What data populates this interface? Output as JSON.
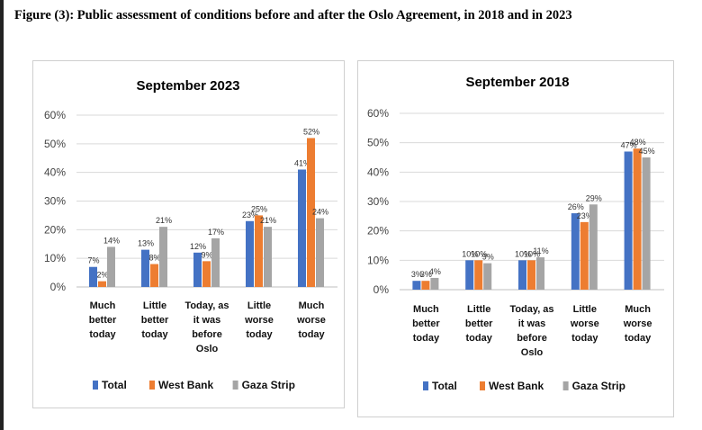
{
  "figure_title": "Figure (3): Public assessment of conditions before and after the Oslo Agreement, in 2018 and in 2023",
  "chart_data": [
    {
      "type": "bar",
      "title": "September 2023",
      "categories": [
        [
          "Much",
          "better",
          "today"
        ],
        [
          "Little",
          "better",
          "today"
        ],
        [
          "Today, as",
          "it was",
          "before",
          "Oslo"
        ],
        [
          "Little",
          "worse",
          "today"
        ],
        [
          "Much",
          "worse",
          "today"
        ]
      ],
      "series": [
        {
          "name": "Total",
          "color": "#4472C4",
          "values": [
            7,
            13,
            12,
            23,
            41
          ],
          "labels": [
            "7%",
            "13%",
            "12%",
            "23%",
            "41%"
          ]
        },
        {
          "name": "West Bank",
          "color": "#ED7D31",
          "values": [
            2,
            8,
            9,
            25,
            52
          ],
          "labels": [
            "2%",
            "8%",
            "9%",
            "25%",
            "52%"
          ]
        },
        {
          "name": "Gaza Strip",
          "color": "#A5A5A5",
          "values": [
            14,
            21,
            17,
            21,
            24
          ],
          "labels": [
            "14%",
            "21%",
            "17%",
            "21%",
            "24%"
          ]
        }
      ],
      "yticks": [
        "0%",
        "10%",
        "20%",
        "30%",
        "40%",
        "50%",
        "60%"
      ],
      "ylim": [
        0,
        60
      ],
      "grid": true,
      "legend": "bottom"
    },
    {
      "type": "bar",
      "title": "September 2018",
      "categories": [
        [
          "Much",
          "better",
          "today"
        ],
        [
          "Little",
          "better",
          "today"
        ],
        [
          "Today, as",
          "it was",
          "before",
          "Oslo"
        ],
        [
          "Little",
          "worse",
          "today"
        ],
        [
          "Much",
          "worse",
          "today"
        ]
      ],
      "series": [
        {
          "name": "Total",
          "color": "#4472C4",
          "values": [
            3,
            10,
            10,
            26,
            47
          ],
          "labels": [
            "3%",
            "10%",
            "10%",
            "26%",
            "47%"
          ]
        },
        {
          "name": "West Bank",
          "color": "#ED7D31",
          "values": [
            3,
            10,
            10,
            23,
            48
          ],
          "labels": [
            "3%",
            "10%",
            "10%",
            "23%",
            "48%"
          ]
        },
        {
          "name": "Gaza Strip",
          "color": "#A5A5A5",
          "values": [
            4,
            9,
            11,
            29,
            45
          ],
          "labels": [
            "4%",
            "9%",
            "11%",
            "29%",
            "45%"
          ]
        }
      ],
      "yticks": [
        "0%",
        "10%",
        "20%",
        "30%",
        "40%",
        "50%",
        "60%"
      ],
      "ylim": [
        0,
        60
      ],
      "grid": true,
      "legend": "bottom"
    }
  ]
}
